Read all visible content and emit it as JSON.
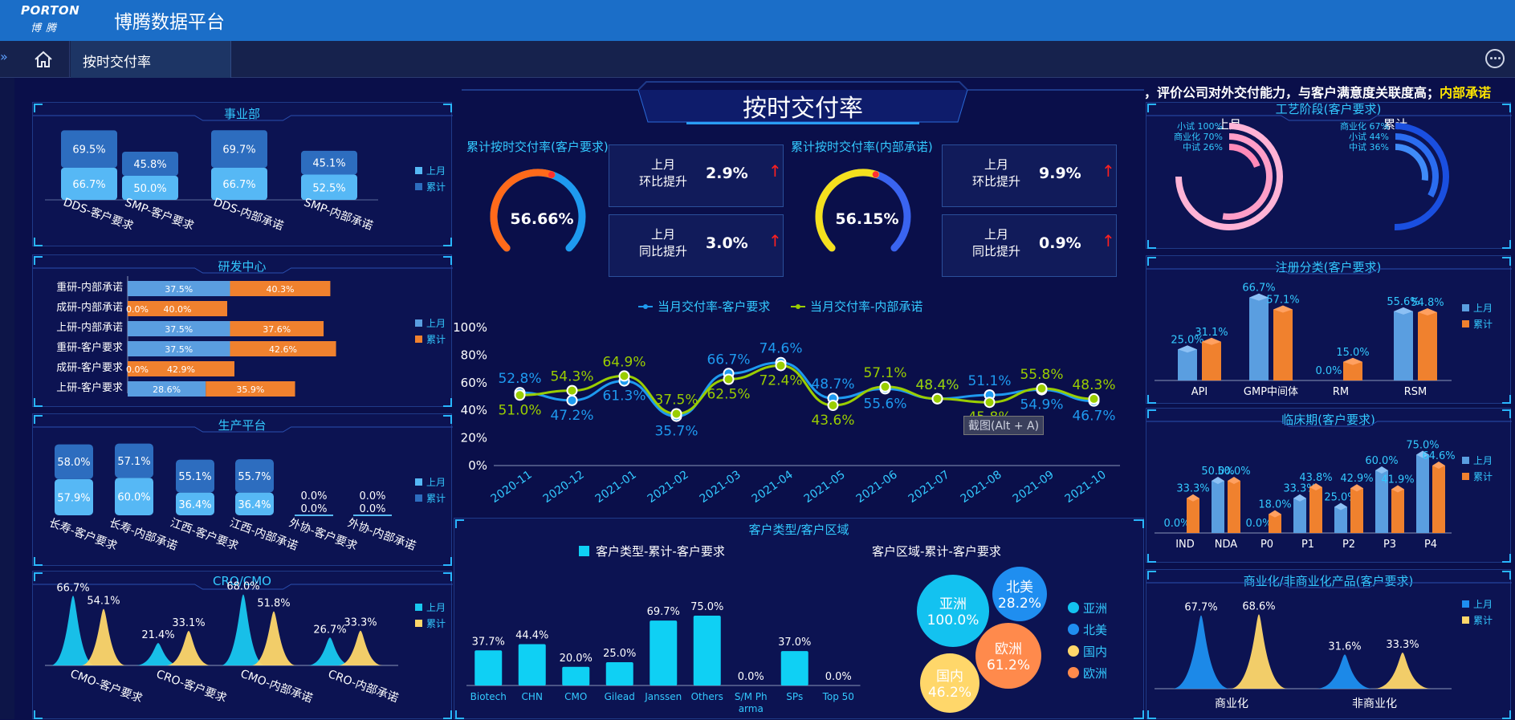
{
  "app": {
    "logo_en": "PORTON",
    "logo_cn": "博腾",
    "title": "博腾数据平台"
  },
  "tabs": {
    "active": "按时交付率"
  },
  "marquee": {
    "text": "，评价公司对外交付能力，与客户满意度关联度高；",
    "highlight": "内部承诺"
  },
  "main_title": "按时交付率",
  "kpi": {
    "customer": {
      "title": "累计按时交付率(客户要求)",
      "value": "56.66%",
      "fraction": 0.5666,
      "mom_label1": "上月",
      "mom_label2": "环比提升",
      "mom_value": "2.9%",
      "yoy_label1": "上月",
      "yoy_label2": "同比提升",
      "yoy_value": "3.0%"
    },
    "internal": {
      "title": "累计按时交付率(内部承诺)",
      "value": "56.15%",
      "fraction": 0.5615,
      "mom_label1": "上月",
      "mom_label2": "环比提升",
      "mom_value": "9.9%",
      "yoy_label1": "上月",
      "yoy_label2": "同比提升",
      "yoy_value": "0.9%"
    },
    "arrow": "↑"
  },
  "legend_common": {
    "last_month": "上月",
    "cumulative": "累计"
  },
  "colors": {
    "accent": "#33c9ff",
    "orange": "#f0812e",
    "blue": "#4a8fdc",
    "lightblue": "#56b8f5",
    "yellow": "#ffd76a",
    "lime": "#9acd00"
  },
  "chart_data": [
    {
      "id": "division",
      "title": "事业部",
      "type": "bar",
      "categories": [
        "DDS-客户要求",
        "SMP-客户要求",
        "DDS-内部承诺",
        "SMP-内部承诺"
      ],
      "series": [
        {
          "name": "上月",
          "values": [
            66.7,
            50.0,
            66.7,
            52.5
          ]
        },
        {
          "name": "累计",
          "values": [
            69.5,
            45.8,
            69.7,
            45.1
          ]
        }
      ],
      "labels": {
        "上月": [
          "66.7%",
          "50.0%",
          "66.7%",
          "52.5%"
        ],
        "累计": [
          "69.5%",
          "45.8%",
          "69.7%",
          "45.1%"
        ]
      }
    },
    {
      "id": "rnd",
      "title": "研发中心",
      "type": "bar",
      "categories": [
        "重研-内部承诺",
        "成研-内部承诺",
        "上研-内部承诺",
        "重研-客户要求",
        "成研-客户要求",
        "上研-客户要求"
      ],
      "series": [
        {
          "name": "上月",
          "values": [
            37.5,
            0.0,
            37.5,
            37.5,
            0.0,
            28.6
          ]
        },
        {
          "name": "累计",
          "values": [
            40.3,
            40.0,
            37.6,
            42.6,
            42.9,
            35.9
          ]
        }
      ],
      "labels": {
        "上月": [
          "37.5%",
          "0.0%",
          "37.5%",
          "37.5%",
          "0.0%",
          "28.6%"
        ],
        "累计": [
          "40.3%",
          "40.0%",
          "37.6%",
          "42.6%",
          "42.9%",
          "35.9%"
        ]
      }
    },
    {
      "id": "production",
      "title": "生产平台",
      "type": "bar",
      "categories": [
        "长寿-客户要求",
        "长寿-内部承诺",
        "江西-客户要求",
        "江西-内部承诺",
        "外协-客户要求",
        "外协-内部承诺"
      ],
      "series": [
        {
          "name": "上月",
          "values": [
            57.9,
            60.0,
            36.4,
            36.4,
            0.0,
            0.0
          ]
        },
        {
          "name": "累计",
          "values": [
            58.0,
            57.1,
            55.1,
            55.7,
            0.0,
            0.0
          ]
        }
      ],
      "labels": {
        "上月": [
          "57.9%",
          "60.0%",
          "36.4%",
          "36.4%",
          "0.0%",
          "0.0%"
        ],
        "累计": [
          "58.0%",
          "57.1%",
          "55.1%",
          "55.7%",
          "0.0%",
          "0.0%"
        ]
      }
    },
    {
      "id": "cro",
      "title": "CRO/CMO",
      "type": "area",
      "categories": [
        "CMO-客户要求",
        "CRO-客户要求",
        "CMO-内部承诺",
        "CRO-内部承诺"
      ],
      "series": [
        {
          "name": "上月",
          "values": [
            66.7,
            21.4,
            68.0,
            26.7
          ]
        },
        {
          "name": "累计",
          "values": [
            54.1,
            33.1,
            51.8,
            33.3
          ]
        }
      ],
      "labels": {
        "上月": [
          "66.7%",
          "21.4%",
          "68.0%",
          "26.7%"
        ],
        "累计": [
          "54.1%",
          "33.1%",
          "51.8%",
          "33.3%"
        ]
      }
    },
    {
      "id": "trend",
      "type": "line",
      "x": [
        "2020-11",
        "2020-12",
        "2021-01",
        "2021-02",
        "2021-03",
        "2021-04",
        "2021-05",
        "2021-06",
        "2021-07",
        "2021-08",
        "2021-09",
        "2021-10"
      ],
      "yticks": [
        "0%",
        "20%",
        "40%",
        "60%",
        "80%",
        "100%"
      ],
      "ylim": [
        0,
        100
      ],
      "series": [
        {
          "name": "当月交付率-客户要求",
          "values": [
            52.8,
            47.2,
            61.3,
            35.7,
            66.7,
            74.6,
            48.7,
            55.6,
            48.4,
            51.1,
            54.9,
            46.7
          ],
          "labels": [
            "52.8%",
            "47.2%",
            "61.3%",
            "35.7%",
            "66.7%",
            "74.6%",
            "48.7%",
            "55.6%",
            "48.4%",
            "51.1%",
            "54.9%",
            "46.7%"
          ]
        },
        {
          "name": "当月交付率-内部承诺",
          "values": [
            51.0,
            54.3,
            64.9,
            37.5,
            62.5,
            72.4,
            43.6,
            57.1,
            48.4,
            45.8,
            55.8,
            48.3
          ],
          "labels": [
            "51.0%",
            "54.3%",
            "64.9%",
            "37.5%",
            "62.5%",
            "72.4%",
            "43.6%",
            "57.1%",
            "48.4%",
            "45.8%",
            "55.8%",
            "48.3%"
          ]
        }
      ],
      "tooltip": "截图(Alt + A)"
    },
    {
      "id": "customer_type",
      "type": "bar",
      "section_title": "客户类型/客户区域",
      "legend": "客户类型-累计-客户要求",
      "categories": [
        "Biotech",
        "CHN",
        "CMO",
        "Gilead",
        "Janssen",
        "Others",
        "S/M Ph arma",
        "SPs",
        "Top 50"
      ],
      "values": [
        37.7,
        44.4,
        20.0,
        25.0,
        69.7,
        75.0,
        0.0,
        37.0,
        0.0
      ],
      "labels": [
        "37.7%",
        "44.4%",
        "20.0%",
        "25.0%",
        "69.7%",
        "75.0%",
        "0.0%",
        "37.0%",
        "0.0%"
      ]
    },
    {
      "id": "customer_region",
      "type": "scatter",
      "title": "客户区域-累计-客户要求",
      "categories": [
        "亚洲",
        "北美",
        "国内",
        "欧洲"
      ],
      "values": [
        100.0,
        28.2,
        46.2,
        61.2
      ],
      "labels": [
        "100.0%",
        "28.2%",
        "46.2%",
        "61.2%"
      ],
      "colors": [
        "#13c2f0",
        "#1f8ef0",
        "#ffd76a",
        "#ff8a4c"
      ]
    },
    {
      "id": "process_stage",
      "type": "pie",
      "title": "工艺阶段(客户要求)",
      "groups": [
        {
          "name": "上月",
          "items": [
            {
              "name": "小试",
              "value": 100,
              "label": "小试 100%"
            },
            {
              "name": "商业化",
              "value": 70,
              "label": "商业化 70%"
            },
            {
              "name": "中试",
              "value": 26,
              "label": "中试 26%"
            }
          ]
        },
        {
          "name": "累计",
          "items": [
            {
              "name": "商业化",
              "value": 67,
              "label": "商业化 67%"
            },
            {
              "name": "小试",
              "value": 44,
              "label": "小试 44%"
            },
            {
              "name": "中试",
              "value": 36,
              "label": "中试 36%"
            }
          ]
        }
      ]
    },
    {
      "id": "registration",
      "type": "bar",
      "title": "注册分类(客户要求)",
      "categories": [
        "API",
        "GMP中间体",
        "RM",
        "RSM"
      ],
      "series": [
        {
          "name": "上月",
          "values": [
            25.0,
            66.7,
            0.0,
            55.6
          ]
        },
        {
          "name": "累计",
          "values": [
            31.1,
            57.1,
            15.0,
            54.8
          ]
        }
      ],
      "labels": {
        "上月": [
          "25.0%",
          "66.7%",
          "0.0%",
          "55.6%"
        ],
        "累计": [
          "31.1%",
          "57.1%",
          "15.0%",
          "54.8%"
        ]
      }
    },
    {
      "id": "clinical",
      "type": "bar",
      "title": "临床期(客户要求)",
      "categories": [
        "IND",
        "NDA",
        "P0",
        "P1",
        "P2",
        "P3",
        "P4"
      ],
      "series": [
        {
          "name": "上月",
          "values": [
            0.0,
            50.0,
            0.0,
            33.3,
            25.0,
            60.0,
            75.0
          ]
        },
        {
          "name": "累计",
          "values": [
            33.3,
            50.0,
            18.0,
            43.8,
            42.9,
            41.9,
            64.6
          ]
        }
      ],
      "labels": {
        "上月": [
          "0.0%",
          "50.0%",
          "0.0%",
          "33.3%",
          "25.0%",
          "60.0%",
          "75.0%"
        ],
        "累计": [
          "33.3%",
          "50.0%",
          "18.0%",
          "43.8%",
          "42.9%",
          "41.9%",
          "64.6%"
        ]
      }
    },
    {
      "id": "commercial",
      "type": "area",
      "title": "商业化/非商业化产品(客户要求)",
      "categories": [
        "商业化",
        "非商业化"
      ],
      "series": [
        {
          "name": "上月",
          "values": [
            67.7,
            31.6
          ]
        },
        {
          "name": "累计",
          "values": [
            68.6,
            33.3
          ]
        }
      ],
      "labels": {
        "上月": [
          "67.7%",
          "31.6%"
        ],
        "累计": [
          "68.6%",
          "33.3%"
        ]
      }
    }
  ]
}
